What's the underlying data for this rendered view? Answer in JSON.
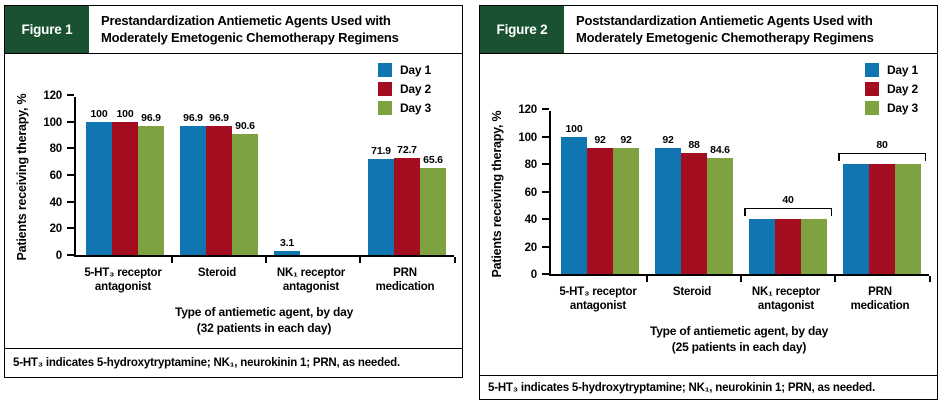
{
  "panels": [
    {
      "label": "Figure 1",
      "title": "Prestandardization Antiemetic Agents Used with Moderately Emetogenic Chemotherapy Regimens",
      "footnote": "5-HT₃ indicates 5-hydroxytryptamine; NK₁, neurokinin 1; PRN, as needed."
    },
    {
      "label": "Figure 2",
      "title": "Poststandardization Antiemetic Agents Used with Moderately Emetogenic Chemotherapy Regimens",
      "footnote": "5-HT₃ indicates 5-hydroxytryptamine; NK₁, neurokinin 1; PRN, as needed."
    }
  ],
  "chart_data": [
    {
      "type": "bar",
      "categories": [
        "5-HT₃ receptor\nantagonist",
        "Steroid",
        "NK₁ receptor\nantagonist",
        "PRN\nmedication"
      ],
      "series": [
        {
          "name": "Day 1",
          "color": "#0f76b2",
          "values": [
            100,
            96.9,
            3.1,
            71.9
          ]
        },
        {
          "name": "Day 2",
          "color": "#a40d20",
          "values": [
            100,
            96.9,
            0,
            72.7
          ]
        },
        {
          "name": "Day 3",
          "color": "#7ea23f",
          "values": [
            96.9,
            90.6,
            0,
            65.6
          ]
        }
      ],
      "group_labels": [
        "",
        "",
        "",
        ""
      ],
      "ylabel": "Patients receiving therapy, %",
      "xlabel": "Type of antiemetic agent, by day",
      "xlabel_note": "(32 patients in each day)",
      "ylim": [
        0,
        120
      ],
      "yticks": [
        0,
        20,
        40,
        60,
        80,
        100,
        120
      ],
      "grid": false,
      "legend_position": "top-right"
    },
    {
      "type": "bar",
      "categories": [
        "5-HT₃ receptor\nantagonist",
        "Steroid",
        "NK₁ receptor\nantagonist",
        "PRN\nmedication"
      ],
      "series": [
        {
          "name": "Day 1",
          "color": "#0f76b2",
          "values": [
            100,
            92,
            40,
            80
          ]
        },
        {
          "name": "Day 2",
          "color": "#a40d20",
          "values": [
            92,
            88,
            40,
            80
          ]
        },
        {
          "name": "Day 3",
          "color": "#7ea23f",
          "values": [
            92,
            84.6,
            40,
            80
          ]
        }
      ],
      "group_labels": [
        "",
        "",
        "40",
        "80"
      ],
      "ylabel": "Patients receiving therapy, %",
      "xlabel": "Type of antiemetic agent, by day",
      "xlabel_note": "(25 patients in each day)",
      "ylim": [
        0,
        120
      ],
      "yticks": [
        0,
        20,
        40,
        60,
        80,
        100,
        120
      ],
      "grid": false,
      "legend_position": "top-right"
    }
  ],
  "colors": {
    "figure_label_bg": "#1a5130",
    "day1": "#0f76b2",
    "day2": "#a40d20",
    "day3": "#7ea23f"
  }
}
